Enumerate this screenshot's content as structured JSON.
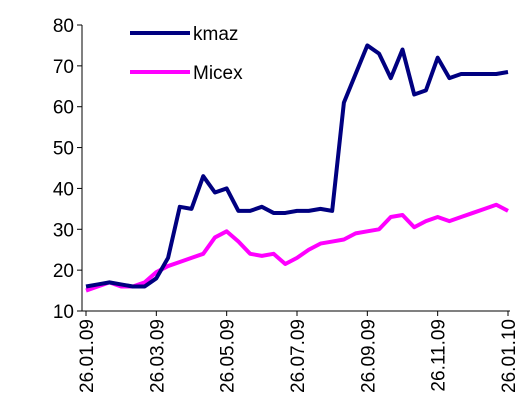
{
  "chart_data": {
    "type": "line",
    "categories": [
      "26.01.09",
      null,
      null,
      null,
      null,
      null,
      "26.03.09",
      null,
      null,
      null,
      null,
      null,
      "26.05.09",
      null,
      null,
      null,
      null,
      null,
      "26.07.09",
      null,
      null,
      null,
      null,
      null,
      "26.09.09",
      null,
      null,
      null,
      null,
      null,
      "26.11.09",
      null,
      null,
      null,
      null,
      null,
      "26.01.10"
    ],
    "series": [
      {
        "name": "kmaz",
        "color": "#000080",
        "values": [
          16,
          16.5,
          17,
          16.5,
          16,
          16,
          18,
          23,
          35.5,
          35,
          43,
          39,
          40,
          34.5,
          34.5,
          35.5,
          34,
          34,
          34.5,
          34.5,
          35,
          34.5,
          61,
          68,
          75,
          73,
          67,
          74,
          63,
          64,
          72,
          67,
          68,
          68,
          68,
          68,
          68.5
        ]
      },
      {
        "name": "Micex",
        "color": "#ff00ff",
        "values": [
          15,
          16,
          17,
          16,
          16,
          17,
          19.5,
          21,
          22,
          23,
          24,
          28,
          29.5,
          27,
          24,
          23.5,
          24,
          21.5,
          23,
          25,
          26.5,
          27,
          27.5,
          29,
          29.5,
          30,
          33,
          33.5,
          30.5,
          32,
          33,
          32,
          33,
          34,
          35,
          36,
          34.5
        ]
      }
    ],
    "ylim": [
      10,
      80
    ],
    "yticks": [
      10,
      20,
      30,
      40,
      50,
      60,
      70,
      80
    ]
  }
}
